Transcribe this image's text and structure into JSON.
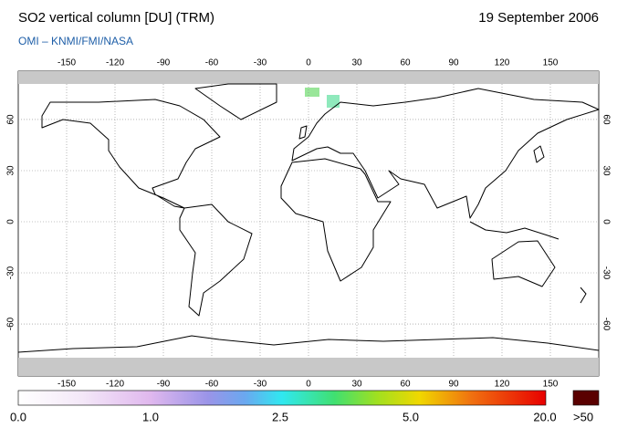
{
  "header": {
    "title": "SO2 vertical column [DU] (TRM)",
    "date": "19 September 2006",
    "subtitle": "OMI  –  KNMI/FMI/NASA"
  },
  "map": {
    "lon_ticks": [
      -150,
      -120,
      -90,
      -60,
      -30,
      0,
      30,
      60,
      90,
      120,
      150
    ],
    "lat_ticks": [
      60,
      30,
      0,
      -30,
      -60
    ]
  },
  "legend": {
    "labels": [
      "0.0",
      "1.0",
      "2.5",
      "5.0",
      "20.0"
    ],
    "overflow_label": ">50"
  }
}
